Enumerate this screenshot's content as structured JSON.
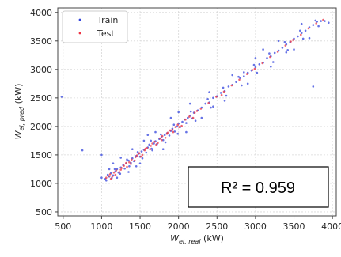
{
  "chart_data": {
    "type": "scatter",
    "xlabel_base": "W",
    "xlabel_sub": "el, real",
    "xlabel_unit": " (kW)",
    "ylabel_base": "W",
    "ylabel_sub": "el, pred",
    "ylabel_unit": " (kW)",
    "xlim": [
      430,
      4050
    ],
    "ylim": [
      430,
      4080
    ],
    "xticks": [
      500,
      1000,
      1500,
      2000,
      2500,
      3000,
      3500,
      4000
    ],
    "yticks": [
      500,
      1000,
      1500,
      2000,
      2500,
      3000,
      3500,
      4000
    ],
    "xtick_labels": [
      "500",
      "1000",
      "1500",
      "2000",
      "2500",
      "3000",
      "3500",
      "4000"
    ],
    "ytick_labels": [
      "500",
      "1000",
      "1500",
      "2000",
      "2500",
      "3000",
      "3500",
      "4000"
    ],
    "grid": true,
    "legend_position": "top-left",
    "series": [
      {
        "name": "Train",
        "color": "#3344dd",
        "points": [
          [
            1050,
            1080
          ],
          [
            1080,
            1150
          ],
          [
            1100,
            1120
          ],
          [
            1120,
            1180
          ],
          [
            1150,
            1140
          ],
          [
            1180,
            1210
          ],
          [
            1200,
            1250
          ],
          [
            1220,
            1190
          ],
          [
            1250,
            1280
          ],
          [
            1280,
            1320
          ],
          [
            1300,
            1260
          ],
          [
            1320,
            1350
          ],
          [
            1350,
            1400
          ],
          [
            1380,
            1360
          ],
          [
            1400,
            1440
          ],
          [
            1420,
            1390
          ],
          [
            1450,
            1480
          ],
          [
            1480,
            1520
          ],
          [
            1500,
            1470
          ],
          [
            1520,
            1560
          ],
          [
            1550,
            1590
          ],
          [
            1580,
            1540
          ],
          [
            1600,
            1630
          ],
          [
            1620,
            1680
          ],
          [
            1650,
            1610
          ],
          [
            1680,
            1700
          ],
          [
            1700,
            1740
          ],
          [
            1720,
            1690
          ],
          [
            1750,
            1780
          ],
          [
            1780,
            1820
          ],
          [
            1800,
            1760
          ],
          [
            1820,
            1850
          ],
          [
            1850,
            1880
          ],
          [
            1880,
            1840
          ],
          [
            1900,
            1920
          ],
          [
            1920,
            1960
          ],
          [
            1950,
            1910
          ],
          [
            1980,
            2000
          ],
          [
            2000,
            2050
          ],
          [
            2020,
            1990
          ],
          [
            2050,
            2080
          ],
          [
            2080,
            2120
          ],
          [
            2100,
            2060
          ],
          [
            2120,
            2150
          ],
          [
            2150,
            2190
          ],
          [
            2180,
            2140
          ],
          [
            2200,
            2240
          ],
          [
            2250,
            2280
          ],
          [
            2300,
            2330
          ],
          [
            2350,
            2400
          ],
          [
            2400,
            2420
          ],
          [
            2450,
            2500
          ],
          [
            2500,
            2530
          ],
          [
            2550,
            2590
          ],
          [
            2600,
            2620
          ],
          [
            2650,
            2700
          ],
          [
            2700,
            2730
          ],
          [
            2750,
            2780
          ],
          [
            2800,
            2850
          ],
          [
            2850,
            2880
          ],
          [
            2900,
            2940
          ],
          [
            2950,
            2980
          ],
          [
            3000,
            3040
          ],
          [
            3050,
            3090
          ],
          [
            3100,
            3120
          ],
          [
            3150,
            3200
          ],
          [
            3200,
            3230
          ],
          [
            3250,
            3290
          ],
          [
            3300,
            3330
          ],
          [
            3350,
            3380
          ],
          [
            3400,
            3440
          ],
          [
            3450,
            3480
          ],
          [
            3500,
            3540
          ],
          [
            3550,
            3580
          ],
          [
            3600,
            3640
          ],
          [
            3650,
            3680
          ],
          [
            3700,
            3740
          ],
          [
            3750,
            3780
          ],
          [
            3800,
            3840
          ],
          [
            3850,
            3850
          ],
          [
            1100,
            1250
          ],
          [
            1200,
            1100
          ],
          [
            1400,
            1600
          ],
          [
            1500,
            1350
          ],
          [
            1700,
            1900
          ],
          [
            1800,
            1600
          ],
          [
            2000,
            2250
          ],
          [
            2100,
            1900
          ],
          [
            2300,
            2150
          ],
          [
            2400,
            2600
          ],
          [
            2600,
            2450
          ],
          [
            2700,
            2900
          ],
          [
            2900,
            2750
          ],
          [
            3000,
            3200
          ],
          [
            3200,
            3050
          ],
          [
            3300,
            3500
          ],
          [
            3500,
            3350
          ],
          [
            3600,
            3800
          ],
          [
            3700,
            3550
          ],
          [
            3750,
            2700
          ],
          [
            1000,
            1100
          ],
          [
            1060,
            1050
          ],
          [
            1130,
            1090
          ],
          [
            1170,
            1250
          ],
          [
            1240,
            1170
          ],
          [
            1330,
            1420
          ],
          [
            1360,
            1300
          ],
          [
            1470,
            1550
          ],
          [
            1530,
            1440
          ],
          [
            1640,
            1750
          ],
          [
            1660,
            1580
          ],
          [
            1770,
            1860
          ],
          [
            1830,
            1720
          ],
          [
            1940,
            2030
          ],
          [
            1990,
            1870
          ],
          [
            2160,
            2260
          ],
          [
            2220,
            2100
          ],
          [
            2380,
            2480
          ],
          [
            2420,
            2330
          ],
          [
            2580,
            2680
          ],
          [
            2620,
            2540
          ],
          [
            2780,
            2870
          ],
          [
            2820,
            2720
          ],
          [
            2980,
            3080
          ],
          [
            3020,
            2940
          ],
          [
            3180,
            3280
          ],
          [
            3230,
            3130
          ],
          [
            3380,
            3480
          ],
          [
            3420,
            3340
          ],
          [
            3580,
            3680
          ],
          [
            3620,
            3540
          ],
          [
            3780,
            3860
          ],
          [
            3820,
            3760
          ],
          [
            3900,
            3850
          ],
          [
            3950,
            3820
          ],
          [
            1150,
            1350
          ],
          [
            1250,
            1450
          ],
          [
            1350,
            1200
          ],
          [
            1450,
            1300
          ],
          [
            1550,
            1750
          ],
          [
            480,
            2520
          ],
          [
            750,
            1580
          ],
          [
            1000,
            1500
          ],
          [
            1600,
            1850
          ],
          [
            1900,
            2150
          ],
          [
            2150,
            2400
          ],
          [
            2450,
            2350
          ],
          [
            2850,
            2950
          ],
          [
            3100,
            3350
          ],
          [
            3400,
            3300
          ]
        ]
      },
      {
        "name": "Test",
        "color": "#ee3344",
        "points": [
          [
            1060,
            1100
          ],
          [
            1090,
            1130
          ],
          [
            1110,
            1160
          ],
          [
            1140,
            1120
          ],
          [
            1160,
            1190
          ],
          [
            1190,
            1230
          ],
          [
            1230,
            1200
          ],
          [
            1260,
            1270
          ],
          [
            1290,
            1310
          ],
          [
            1330,
            1290
          ],
          [
            1360,
            1370
          ],
          [
            1390,
            1420
          ],
          [
            1430,
            1400
          ],
          [
            1460,
            1490
          ],
          [
            1490,
            1530
          ],
          [
            1530,
            1500
          ],
          [
            1560,
            1580
          ],
          [
            1590,
            1620
          ],
          [
            1630,
            1600
          ],
          [
            1660,
            1700
          ],
          [
            1690,
            1730
          ],
          [
            1730,
            1710
          ],
          [
            1760,
            1790
          ],
          [
            1790,
            1830
          ],
          [
            1830,
            1800
          ],
          [
            1860,
            1890
          ],
          [
            1890,
            1930
          ],
          [
            1930,
            1900
          ],
          [
            1960,
            1990
          ],
          [
            1990,
            2030
          ],
          [
            2040,
            2010
          ],
          [
            2090,
            2120
          ],
          [
            2140,
            2170
          ],
          [
            2190,
            2150
          ],
          [
            2240,
            2270
          ],
          [
            2290,
            2310
          ],
          [
            2390,
            2410
          ],
          [
            2490,
            2520
          ],
          [
            2590,
            2610
          ],
          [
            2690,
            2720
          ],
          [
            2790,
            2820
          ],
          [
            2890,
            2920
          ],
          [
            2990,
            3010
          ],
          [
            3090,
            3110
          ],
          [
            3190,
            3220
          ],
          [
            3290,
            3310
          ],
          [
            3390,
            3420
          ],
          [
            3490,
            3520
          ],
          [
            3590,
            3610
          ],
          [
            3690,
            3720
          ],
          [
            3790,
            3810
          ],
          [
            3880,
            3870
          ],
          [
            1120,
            1080
          ],
          [
            1180,
            1150
          ],
          [
            1250,
            1240
          ],
          [
            1320,
            1360
          ],
          [
            1380,
            1340
          ],
          [
            1440,
            1460
          ],
          [
            1510,
            1470
          ],
          [
            1570,
            1610
          ],
          [
            1640,
            1660
          ],
          [
            1710,
            1680
          ],
          [
            1780,
            1760
          ],
          [
            1850,
            1870
          ],
          [
            1920,
            1940
          ],
          [
            2010,
            1990
          ],
          [
            2210,
            2240
          ],
          [
            2560,
            2550
          ],
          [
            2960,
            2990
          ],
          [
            3460,
            3490
          ]
        ]
      }
    ],
    "annotation": "R² = 0.959"
  }
}
